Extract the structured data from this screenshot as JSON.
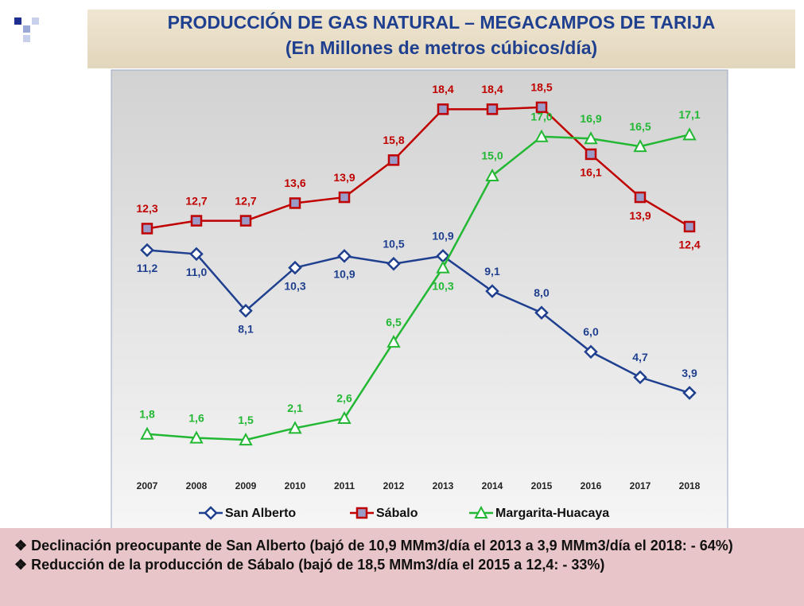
{
  "chart_data": {
    "type": "line",
    "title": "PRODUCCIÓN DE GAS NATURAL – MEGACAMPOS DE TARIJA",
    "subtitle": "(En Millones de metros cúbicos/día)",
    "categories": [
      "2007",
      "2008",
      "2009",
      "2010",
      "2011",
      "2012",
      "2013",
      "2014",
      "2015",
      "2016",
      "2017",
      "2018"
    ],
    "ylim": [
      0,
      20
    ],
    "series": [
      {
        "name": "San Alberto",
        "color": "#1f3f8f",
        "marker": "diamond",
        "values": [
          11.2,
          11.0,
          8.1,
          10.3,
          10.9,
          10.5,
          10.9,
          9.1,
          8.0,
          6.0,
          4.7,
          3.9
        ],
        "value_labels": [
          "11,2",
          "11,0",
          "8,1",
          "10,3",
          "10,9",
          "10,5",
          "10,9",
          "9,1",
          "8,0",
          "6,0",
          "4,7",
          "3,9"
        ]
      },
      {
        "name": "Sábalo",
        "color": "#c00000",
        "marker": "square",
        "values": [
          12.3,
          12.7,
          12.7,
          13.6,
          13.9,
          15.8,
          18.4,
          18.4,
          18.5,
          16.1,
          13.9,
          12.4
        ],
        "value_labels": [
          "12,3",
          "12,7",
          "12,7",
          "13,6",
          "13,9",
          "15,8",
          "18,4",
          "18,4",
          "18,5",
          "16,1",
          "13,9",
          "12,4"
        ]
      },
      {
        "name": "Margarita-Huacaya",
        "color": "#22b833",
        "marker": "triangle",
        "values": [
          1.8,
          1.6,
          1.5,
          2.1,
          2.6,
          6.5,
          10.3,
          15.0,
          17.0,
          16.9,
          16.5,
          17.1
        ],
        "value_labels": [
          "1,8",
          "1,6",
          "1,5",
          "2,1",
          "2,6",
          "6,5",
          "10,3",
          "15,0",
          "17,0",
          "16,9",
          "16,5",
          "17,1"
        ]
      }
    ]
  },
  "notes": [
    "❖ Declinación preocupante de San Alberto (bajó de 10,9 MMm3/día el 2013 a 3,9 MMm3/día el 2018: - 64%)",
    "❖ Reducción de la producción de Sábalo (bajó de 18,5 MMm3/día el 2015 a 12,4: - 33%)"
  ]
}
